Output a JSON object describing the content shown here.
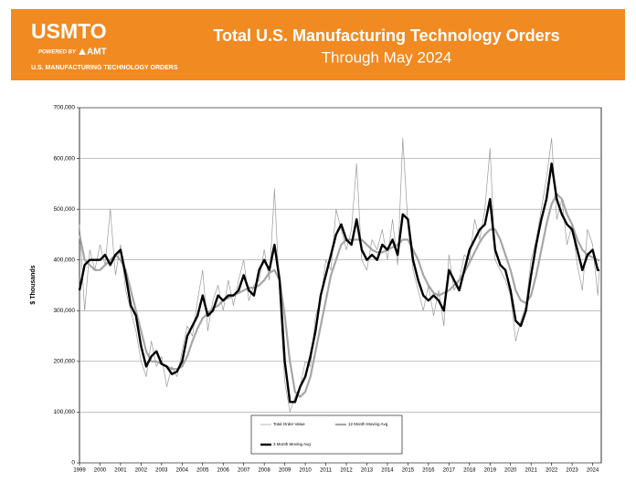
{
  "header": {
    "logo": "USMTO",
    "powered_by": "POWERED BY",
    "brand": "AMT",
    "tagline": "U.S. MANUFACTURING TECHNOLOGY ORDERS"
  },
  "chart_data": {
    "type": "line",
    "title": "Total U.S. Manufacturing Technology Orders",
    "subtitle": "Through May 2024",
    "y_label": "$ Thousands",
    "x": [
      1999,
      1999.25,
      1999.5,
      1999.75,
      2000,
      2000.25,
      2000.5,
      2000.75,
      2001,
      2001.25,
      2001.5,
      2001.75,
      2002,
      2002.25,
      2002.5,
      2002.75,
      2003,
      2003.25,
      2003.5,
      2003.75,
      2004,
      2004.25,
      2004.5,
      2004.75,
      2005,
      2005.25,
      2005.5,
      2005.75,
      2006,
      2006.25,
      2006.5,
      2006.75,
      2007,
      2007.25,
      2007.5,
      2007.75,
      2008,
      2008.25,
      2008.5,
      2008.75,
      2009,
      2009.25,
      2009.5,
      2009.75,
      2010,
      2010.25,
      2010.5,
      2010.75,
      2011,
      2011.25,
      2011.5,
      2011.75,
      2012,
      2012.25,
      2012.5,
      2012.75,
      2013,
      2013.25,
      2013.5,
      2013.75,
      2014,
      2014.25,
      2014.5,
      2014.75,
      2015,
      2015.25,
      2015.5,
      2015.75,
      2016,
      2016.25,
      2016.5,
      2016.75,
      2017,
      2017.25,
      2017.5,
      2017.75,
      2018,
      2018.25,
      2018.5,
      2018.75,
      2019,
      2019.25,
      2019.5,
      2019.75,
      2020,
      2020.25,
      2020.5,
      2020.75,
      2021,
      2021.25,
      2021.5,
      2021.75,
      2022,
      2022.25,
      2022.5,
      2022.75,
      2023,
      2023.25,
      2023.5,
      2023.75,
      2024,
      2024.25,
      2024.33
    ],
    "series": [
      {
        "name": "Total Order Value",
        "color": "#9a9a9a",
        "values": [
          470000,
          300000,
          420000,
          380000,
          430000,
          390000,
          500000,
          370000,
          430000,
          340000,
          300000,
          260000,
          200000,
          170000,
          240000,
          190000,
          210000,
          150000,
          190000,
          170000,
          220000,
          270000,
          250000,
          320000,
          380000,
          260000,
          320000,
          350000,
          300000,
          360000,
          310000,
          360000,
          400000,
          320000,
          350000,
          360000,
          420000,
          360000,
          540000,
          330000,
          160000,
          100000,
          130000,
          150000,
          200000,
          190000,
          290000,
          320000,
          400000,
          380000,
          500000,
          460000,
          420000,
          460000,
          590000,
          400000,
          380000,
          440000,
          420000,
          460000,
          400000,
          480000,
          390000,
          640000,
          470000,
          380000,
          340000,
          300000,
          350000,
          290000,
          340000,
          270000,
          410000,
          340000,
          360000,
          410000,
          400000,
          480000,
          440000,
          500000,
          620000,
          400000,
          380000,
          360000,
          330000,
          240000,
          280000,
          310000,
          400000,
          440000,
          500000,
          560000,
          640000,
          480000,
          520000,
          430000,
          470000,
          390000,
          340000,
          460000,
          430000,
          330000,
          380000
        ]
      },
      {
        "name": "12 Month Moving Avg",
        "color": "#a6a6a6",
        "values": [
          450000,
          400000,
          390000,
          380000,
          380000,
          390000,
          400000,
          410000,
          400000,
          380000,
          340000,
          300000,
          260000,
          220000,
          200000,
          200000,
          195000,
          190000,
          185000,
          185000,
          190000,
          210000,
          240000,
          265000,
          285000,
          295000,
          305000,
          310000,
          320000,
          325000,
          330000,
          335000,
          340000,
          345000,
          345000,
          350000,
          360000,
          375000,
          380000,
          360000,
          290000,
          200000,
          140000,
          130000,
          140000,
          170000,
          220000,
          270000,
          320000,
          370000,
          400000,
          430000,
          440000,
          440000,
          440000,
          440000,
          430000,
          420000,
          415000,
          415000,
          420000,
          425000,
          430000,
          440000,
          440000,
          420000,
          400000,
          370000,
          350000,
          335000,
          330000,
          335000,
          340000,
          350000,
          360000,
          375000,
          395000,
          415000,
          435000,
          450000,
          460000,
          460000,
          440000,
          410000,
          380000,
          340000,
          320000,
          315000,
          330000,
          370000,
          420000,
          470000,
          510000,
          530000,
          520000,
          490000,
          470000,
          440000,
          420000,
          410000,
          405000,
          400000,
          398000
        ]
      },
      {
        "name": "3 Month Moving Avg",
        "color": "#000000",
        "values": [
          340000,
          390000,
          400000,
          400000,
          400000,
          410000,
          390000,
          410000,
          420000,
          370000,
          310000,
          290000,
          230000,
          190000,
          210000,
          220000,
          195000,
          190000,
          175000,
          180000,
          200000,
          250000,
          270000,
          290000,
          330000,
          290000,
          300000,
          330000,
          320000,
          330000,
          330000,
          340000,
          370000,
          340000,
          330000,
          380000,
          400000,
          380000,
          430000,
          360000,
          200000,
          120000,
          120000,
          150000,
          170000,
          210000,
          260000,
          330000,
          370000,
          410000,
          450000,
          470000,
          440000,
          430000,
          480000,
          420000,
          400000,
          410000,
          400000,
          430000,
          420000,
          440000,
          410000,
          490000,
          480000,
          400000,
          360000,
          330000,
          320000,
          330000,
          320000,
          300000,
          380000,
          360000,
          340000,
          380000,
          420000,
          440000,
          460000,
          470000,
          520000,
          420000,
          390000,
          380000,
          340000,
          280000,
          270000,
          300000,
          370000,
          430000,
          480000,
          520000,
          590000,
          520000,
          490000,
          470000,
          460000,
          420000,
          380000,
          410000,
          420000,
          380000,
          380000
        ]
      }
    ],
    "xlim": [
      1999,
      2024.42
    ],
    "xticks": [
      1999,
      2000,
      2001,
      2002,
      2003,
      2004,
      2005,
      2006,
      2007,
      2008,
      2009,
      2010,
      2011,
      2012,
      2013,
      2014,
      2015,
      2016,
      2017,
      2018,
      2019,
      2020,
      2021,
      2022,
      2023,
      2024
    ],
    "ylim": [
      0,
      700000
    ],
    "yticks": [
      {
        "value": 0,
        "label": "0"
      },
      {
        "value": 100000,
        "label": "100,000"
      },
      {
        "value": 200000,
        "label": "200,000"
      },
      {
        "value": 300000,
        "label": "300,000"
      },
      {
        "value": 400000,
        "label": "400,000"
      },
      {
        "value": 500000,
        "label": "500,000"
      },
      {
        "value": 600000,
        "label": "600,000"
      },
      {
        "value": 700000,
        "label": "700,000"
      }
    ],
    "grid": true,
    "legend": "bottom"
  }
}
